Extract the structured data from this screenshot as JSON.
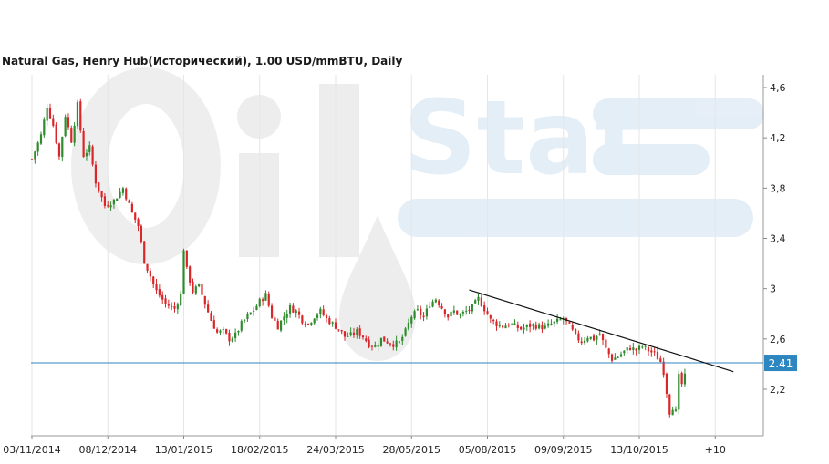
{
  "chart_data": {
    "type": "candlestick",
    "title": "Natural Gas, Henry Hub(Исторический), 1.00 USD/mmBTU, Daily",
    "ylim": [
      1.9,
      4.7
    ],
    "y_ticks": [
      {
        "value": 4.6,
        "label": "4,6"
      },
      {
        "value": 4.2,
        "label": "4,2"
      },
      {
        "value": 3.8,
        "label": "3,8"
      },
      {
        "value": 3.4,
        "label": "3,4"
      },
      {
        "value": 3.0,
        "label": "3"
      },
      {
        "value": 2.6,
        "label": "2,6"
      },
      {
        "value": 2.2,
        "label": "2,2"
      }
    ],
    "x_ticks": [
      {
        "index": 0,
        "label": "03/11/2014"
      },
      {
        "index": 25,
        "label": "08/12/2014"
      },
      {
        "index": 50,
        "label": "13/01/2015"
      },
      {
        "index": 75,
        "label": "18/02/2015"
      },
      {
        "index": 100,
        "label": "24/03/2015"
      },
      {
        "index": 125,
        "label": "28/05/2015"
      },
      {
        "index": 150,
        "label": "05/08/2015"
      },
      {
        "index": 175,
        "label": "09/09/2015"
      },
      {
        "index": 200,
        "label": "13/10/2015"
      },
      {
        "index": 225,
        "label": "+10"
      }
    ],
    "x_range": [
      -1,
      239
    ],
    "current_price": {
      "value": 2.41,
      "label": "2.41"
    },
    "trendline": {
      "start": {
        "index": 144,
        "value": 2.99
      },
      "end": {
        "index": 231,
        "value": 2.34
      }
    },
    "grid": "vertical",
    "colors": {
      "up": "#2e8b2e",
      "down": "#d9262a",
      "price_line": "#2e86c1",
      "price_tag": "#2e86c1",
      "trendline": "#111111"
    },
    "ohlc": []
  }
}
